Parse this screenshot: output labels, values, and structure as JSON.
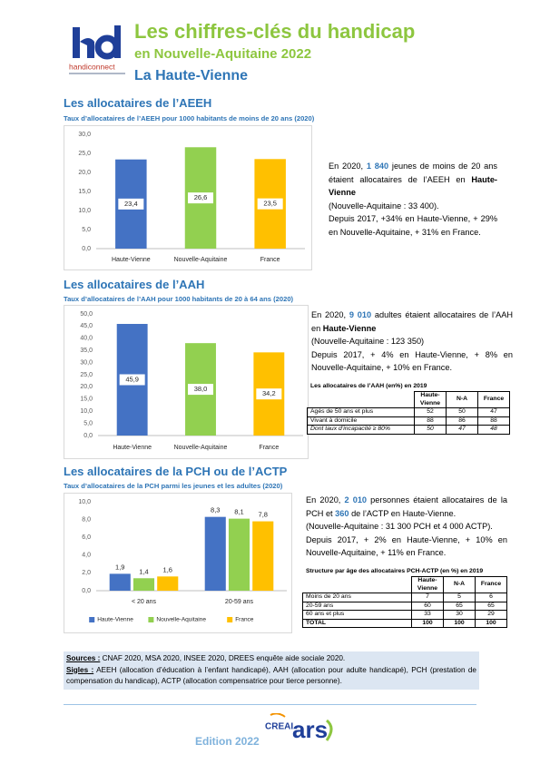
{
  "header": {
    "brand": "handiconnect",
    "title": "Les chiffres-clés du handicap",
    "subtitle": "en Nouvelle-Aquitaine 2022",
    "territory": "La Haute-Vienne"
  },
  "chart_data": [
    {
      "type": "bar",
      "heading": "Les allocataires de l’AEEH",
      "title": "Taux d’allocataires de l’AEEH pour 1000 habitants de moins de 20 ans (2020)",
      "categories": [
        "Haute-Vienne",
        "Nouvelle-Aquitaine",
        "France"
      ],
      "values": [
        23.4,
        26.6,
        23.5
      ],
      "value_labels": [
        "23,4",
        "26,6",
        "23,5"
      ],
      "colors": [
        "#4472c4",
        "#92d050",
        "#ffc000"
      ],
      "label_position": "center",
      "ylim": [
        0,
        30
      ],
      "yticks": [
        {
          "value": 0,
          "label": "0,0"
        },
        {
          "value": 5,
          "label": "5,0"
        },
        {
          "value": 10,
          "label": "10,0"
        },
        {
          "value": 15,
          "label": "15,0"
        },
        {
          "value": 20,
          "label": "20,0"
        },
        {
          "value": 25,
          "label": "25,0"
        },
        {
          "value": 30,
          "label": "30,0"
        }
      ],
      "grid": false
    },
    {
      "type": "bar",
      "heading": "Les allocataires de l’AAH",
      "title": "Taux d’allocataires de l’AAH pour 1000 habitants de 20 à 64 ans (2020)",
      "categories": [
        "Haute-Vienne",
        "Nouvelle-Aquitaine",
        "France"
      ],
      "values": [
        45.9,
        38.0,
        34.2
      ],
      "value_labels": [
        "45,9",
        "38,0",
        "34,2"
      ],
      "colors": [
        "#4472c4",
        "#92d050",
        "#ffc000"
      ],
      "label_position": "center",
      "ylim": [
        0,
        50
      ],
      "yticks": [
        {
          "value": 0,
          "label": "0,0"
        },
        {
          "value": 5,
          "label": "5,0"
        },
        {
          "value": 10,
          "label": "10,0"
        },
        {
          "value": 15,
          "label": "15,0"
        },
        {
          "value": 20,
          "label": "20,0"
        },
        {
          "value": 25,
          "label": "25,0"
        },
        {
          "value": 30,
          "label": "30,0"
        },
        {
          "value": 35,
          "label": "35,0"
        },
        {
          "value": 40,
          "label": "40,0"
        },
        {
          "value": 45,
          "label": "45,0"
        },
        {
          "value": 50,
          "label": "50,0"
        }
      ],
      "grid": false
    },
    {
      "type": "grouped_bar",
      "heading": "Les allocataires de la PCH ou de l’ACTP",
      "title": "Taux d’allocataires de la PCH parmi les jeunes et les adultes (2020)",
      "categories": [
        "< 20 ans",
        "20-59 ans"
      ],
      "series": [
        {
          "name": "Haute-Vienne",
          "color": "#4472c4",
          "values": [
            1.9,
            8.3
          ],
          "value_labels": [
            "1,9",
            "8,3"
          ]
        },
        {
          "name": "Nouvelle-Aquitaine",
          "color": "#92d050",
          "values": [
            1.4,
            8.1
          ],
          "value_labels": [
            "1,4",
            "8,1"
          ]
        },
        {
          "name": "France",
          "color": "#ffc000",
          "values": [
            1.6,
            7.8
          ],
          "value_labels": [
            "1,6",
            "7,8"
          ]
        }
      ],
      "label_position": "above",
      "legend": "bottom",
      "ylim": [
        0,
        10
      ],
      "yticks": [
        {
          "value": 0,
          "label": "0,0"
        },
        {
          "value": 2,
          "label": "2,0"
        },
        {
          "value": 4,
          "label": "4,0"
        },
        {
          "value": 6,
          "label": "6,0"
        },
        {
          "value": 8,
          "label": "8,0"
        },
        {
          "value": 10,
          "label": "10,0"
        }
      ],
      "grid": false
    }
  ],
  "texts": {
    "aeeh": [
      "En 2020, ",
      "1 840",
      " jeunes de moins de 20 ans étaient allocataires de l’AEEH en ",
      "Haute-Vienne",
      "(Nouvelle-Aquitaine : 33 400).",
      "Depuis 2017, +34% en Haute-Vienne, + 29% en Nouvelle-Aquitaine, + 31% en France."
    ],
    "aah": [
      "En 2020, ",
      "9 010",
      " adultes étaient allocataires de l’AAH en ",
      "Haute-Vienne",
      "(Nouvelle-Aquitaine : 123 350)",
      "Depuis 2017, + 4% en Haute-Vienne, + 8% en Nouvelle-Aquitaine, + 10% en France."
    ],
    "pch": [
      "En 2020, ",
      "2 010",
      " personnes étaient allocataires de la PCH et ",
      "360",
      " de l’ACTP en Haute-Vienne.",
      "(Nouvelle-Aquitaine : 31 300 PCH et 4 000 ACTP).",
      "Depuis 2017, + 2% en Haute-Vienne, + 10% en Nouvelle-Aquitaine, + 11% en France."
    ]
  },
  "tables": [
    {
      "title": "Les allocataires de l’AAH (en%) en 2019",
      "columns": [
        "Haute-Vienne",
        "N-A",
        "France"
      ],
      "rows": [
        {
          "label": "Agés de 50 ans et plus",
          "values": [
            "52",
            "50",
            "47"
          ]
        },
        {
          "label": "Vivant à domicile",
          "values": [
            "88",
            "86",
            "88"
          ]
        },
        {
          "label": "Dont taux d’incapacité ≥ 80%",
          "values": [
            "50",
            "47",
            "48"
          ],
          "italic": true
        }
      ]
    },
    {
      "title": "Structure par âge des allocataires PCH-ACTP (en %) en 2019",
      "columns": [
        "Haute-Vienne",
        "N-A",
        "France"
      ],
      "rows": [
        {
          "label": "Moins de 20 ans",
          "values": [
            "7",
            "5",
            "6"
          ]
        },
        {
          "label": "20-59 ans",
          "values": [
            "60",
            "65",
            "65"
          ]
        },
        {
          "label": "60 ans et plus",
          "values": [
            "33",
            "30",
            "29"
          ]
        },
        {
          "label": "TOTAL",
          "values": [
            "100",
            "100",
            "100"
          ],
          "bold": true
        }
      ]
    }
  ],
  "footer": {
    "sources_label": "Sources :",
    "sources": " CNAF 2020, MSA 2020, INSEE 2020, DREES enquête aide sociale 2020.",
    "sigles_label": "Sigles :",
    "sigles": " AEEH (allocation d’éducation à l’enfant handicapé), AAH (allocation pour adulte handicapé), PCH (prestation de compensation du handicap), ACTP (allocation compensatrice pour tierce personne).",
    "edition": "Edition 2022",
    "logo_creai": "CREAI",
    "logo_ars": "ars"
  }
}
